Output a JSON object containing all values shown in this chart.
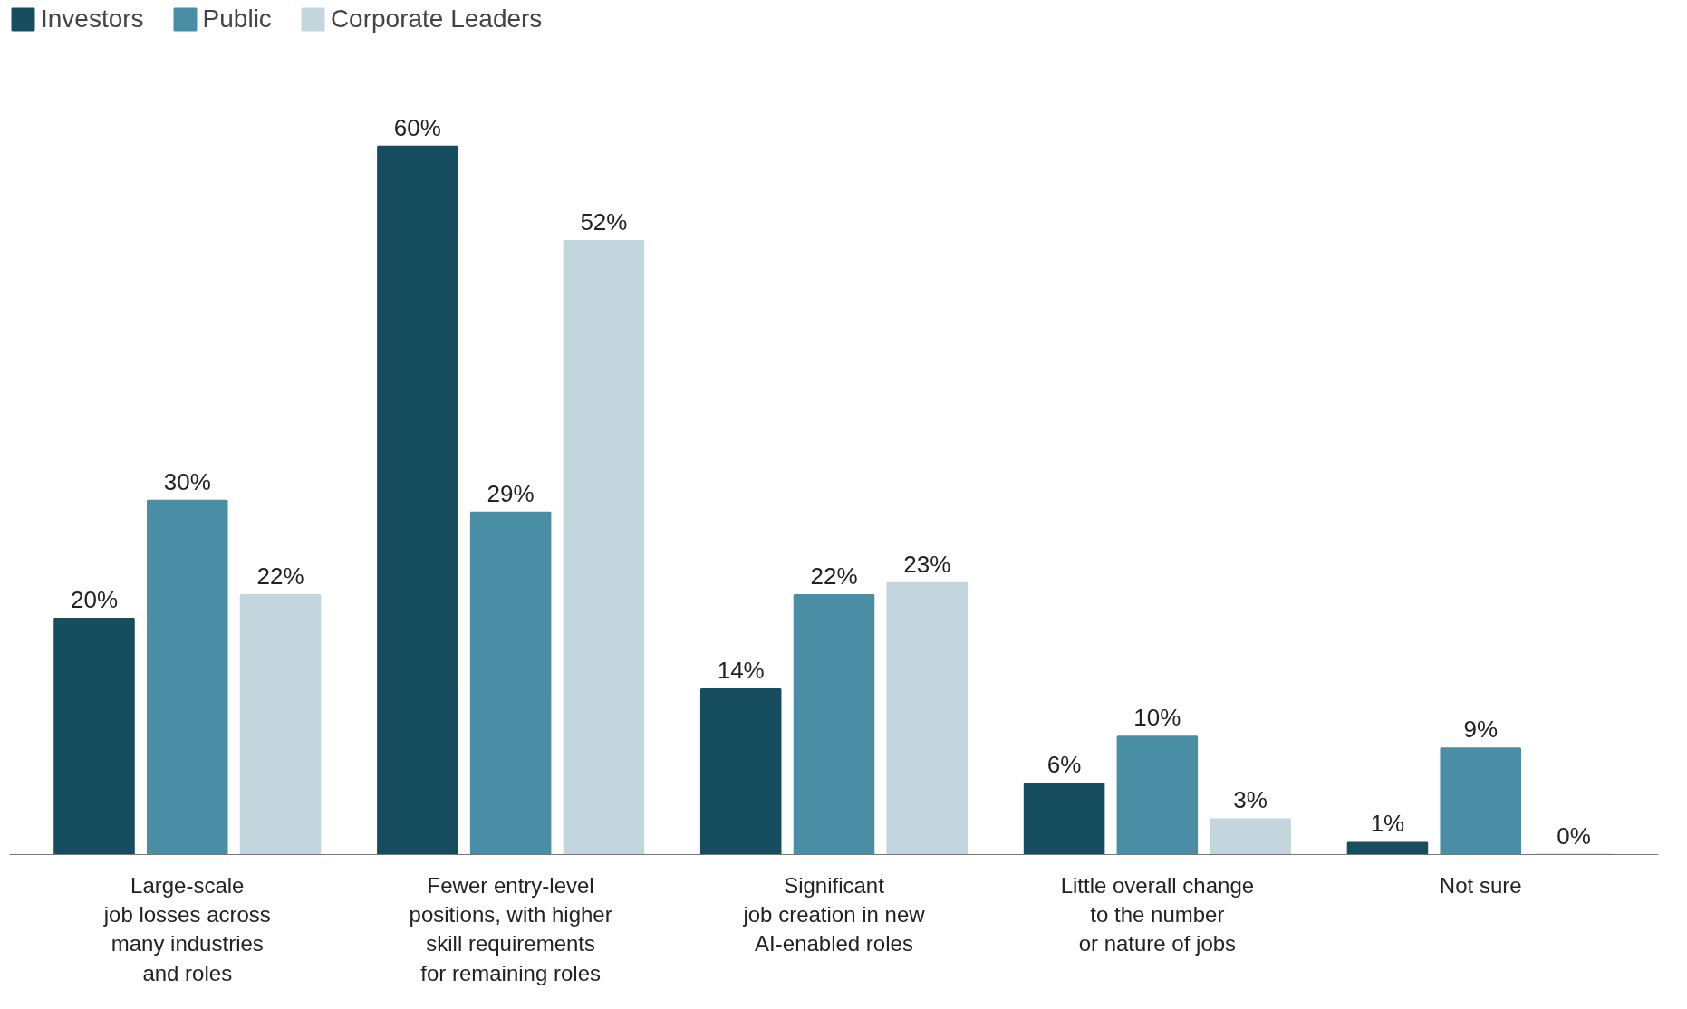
{
  "chart_data": {
    "type": "bar",
    "categories": [
      "Large-scale\njob losses across\nmany industries\nand roles",
      "Fewer entry-level\npositions, with higher\nskill requirements\nfor remaining roles",
      "Significant\njob creation in new\nAI-enabled roles",
      "Little overall change\nto the number\nor nature of jobs",
      "Not sure"
    ],
    "series": [
      {
        "name": "Investors",
        "color": "#174e5f",
        "values": [
          20,
          60,
          14,
          6,
          1
        ],
        "value_labels": [
          "20%",
          "60%",
          "14%",
          "6%",
          "1%"
        ]
      },
      {
        "name": "Public",
        "color": "#4a8ea5",
        "values": [
          30,
          29,
          22,
          10,
          9
        ],
        "value_labels": [
          "30%",
          "29%",
          "22%",
          "10%",
          "9%"
        ]
      },
      {
        "name": "Corporate Leaders",
        "color": "#c3d6dd",
        "values": [
          22,
          52,
          23,
          3,
          0
        ],
        "value_labels": [
          "22%",
          "52%",
          "23%",
          "3%",
          "0%"
        ]
      }
    ],
    "legend": "top left"
  }
}
